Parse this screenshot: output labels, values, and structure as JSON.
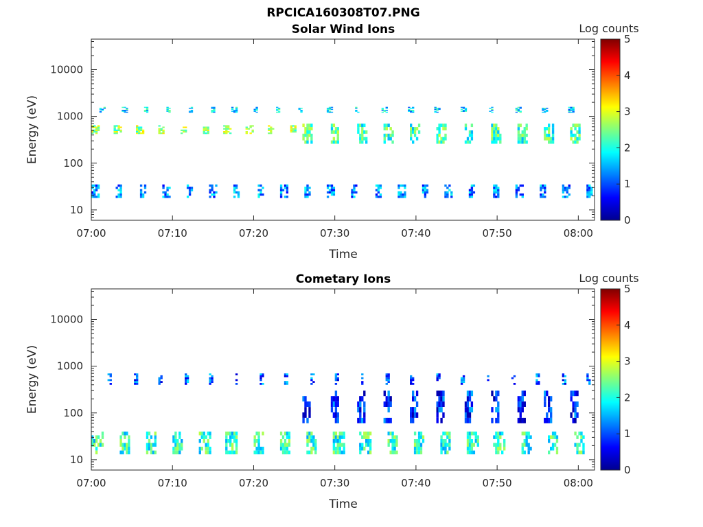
{
  "figure": {
    "title": "RPCICA160308T07.PNG"
  },
  "chart_data": [
    {
      "type": "heatmap",
      "title": "Solar Wind Ions",
      "xlabel": "Time",
      "ylabel": "Energy (eV)",
      "x_range": [
        "07:00",
        "08:02"
      ],
      "x_tick_labels": [
        "07:00",
        "07:10",
        "07:20",
        "07:30",
        "07:40",
        "07:50",
        "08:00"
      ],
      "y_scale": "log",
      "y_range": [
        6,
        45000
      ],
      "y_tick_labels": [
        "10",
        "100",
        "1000",
        "10000"
      ],
      "colorbar": {
        "label": "Log counts",
        "range": [
          0,
          5
        ],
        "tick_labels": [
          "0",
          "1",
          "2",
          "3",
          "4",
          "5"
        ],
        "colormap": "jet"
      },
      "bands": [
        {
          "energy_range": [
            420,
            650
          ],
          "log_counts": 2.6,
          "t_start": "07:00",
          "t_end": "07:26",
          "period_min": 2.7,
          "duty": 0.32
        },
        {
          "energy_range": [
            1200,
            1600
          ],
          "log_counts": 1.8,
          "t_start": "07:01",
          "t_end": "07:28",
          "period_min": 2.7,
          "duty": 0.22
        },
        {
          "energy_range": [
            260,
            700
          ],
          "log_counts": 2.2,
          "t_start": "07:26",
          "t_end": "08:02",
          "period_min": 3.3,
          "duty": 0.35
        },
        {
          "energy_range": [
            1200,
            1600
          ],
          "log_counts": 1.7,
          "t_start": "07:29",
          "t_end": "08:02",
          "period_min": 3.3,
          "duty": 0.2
        },
        {
          "energy_range": [
            18,
            35
          ],
          "log_counts": 1.3,
          "t_start": "07:00",
          "t_end": "08:02",
          "period_min": 2.9,
          "duty": 0.28
        }
      ]
    },
    {
      "type": "heatmap",
      "title": "Cometary Ions",
      "xlabel": "Time",
      "ylabel": "Energy (eV)",
      "x_range": [
        "07:00",
        "08:02"
      ],
      "x_tick_labels": [
        "07:00",
        "07:10",
        "07:20",
        "07:30",
        "07:40",
        "07:50",
        "08:00"
      ],
      "y_scale": "log",
      "y_range": [
        6,
        45000
      ],
      "y_tick_labels": [
        "10",
        "100",
        "1000",
        "10000"
      ],
      "colorbar": {
        "label": "Log counts",
        "range": [
          0,
          5
        ],
        "tick_labels": [
          "0",
          "1",
          "2",
          "3",
          "4",
          "5"
        ],
        "colormap": "jet"
      },
      "bands": [
        {
          "energy_range": [
            13,
            40
          ],
          "log_counts": 2.1,
          "t_start": "07:00",
          "t_end": "08:02",
          "period_min": 3.3,
          "duty": 0.4
        },
        {
          "energy_range": [
            60,
            300
          ],
          "log_counts": 0.8,
          "t_start": "07:26",
          "t_end": "08:02",
          "period_min": 3.3,
          "duty": 0.3
        },
        {
          "energy_range": [
            400,
            700
          ],
          "log_counts": 1.1,
          "t_start": "07:02",
          "t_end": "08:02",
          "period_min": 3.1,
          "duty": 0.15
        }
      ]
    }
  ]
}
